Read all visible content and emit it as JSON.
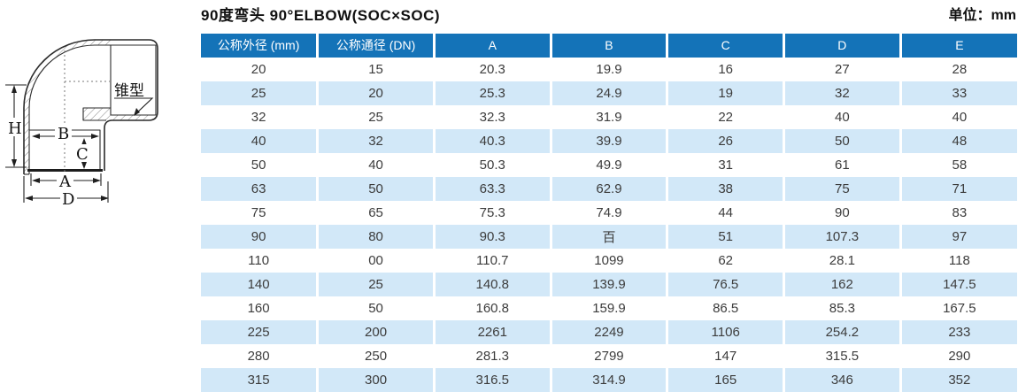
{
  "page": {
    "title": "90度弯头  90°ELBOW(SOC×SOC)",
    "unit_label": "单位：mm"
  },
  "diagram": {
    "cone_label": "锥型",
    "dim_h": "H",
    "dim_b": "B",
    "dim_c": "C",
    "dim_a": "A",
    "dim_d": "D"
  },
  "table": {
    "columns": [
      "公称外径 (mm)",
      "公称通径 (DN)",
      "A",
      "B",
      "C",
      "D",
      "E"
    ],
    "rows": [
      [
        "20",
        "15",
        "20.3",
        "19.9",
        "16",
        "27",
        "28"
      ],
      [
        "25",
        "20",
        "25.3",
        "24.9",
        "19",
        "32",
        "33"
      ],
      [
        "32",
        "25",
        "32.3",
        "31.9",
        "22",
        "40",
        "40"
      ],
      [
        "40",
        "32",
        "40.3",
        "39.9",
        "26",
        "50",
        "48"
      ],
      [
        "50",
        "40",
        "50.3",
        "49.9",
        "31",
        "61",
        "58"
      ],
      [
        "63",
        "50",
        "63.3",
        "62.9",
        "38",
        "75",
        "71"
      ],
      [
        "75",
        "65",
        "75.3",
        "74.9",
        "44",
        "90",
        "83"
      ],
      [
        "90",
        "80",
        "90.3",
        "百",
        "51",
        "107.3",
        "97"
      ],
      [
        "110",
        "00",
        "110.7",
        "1099",
        "62",
        "28.1",
        "118"
      ],
      [
        "140",
        "25",
        "140.8",
        "139.9",
        "76.5",
        "162",
        "147.5"
      ],
      [
        "160",
        "50",
        "160.8",
        "159.9",
        "86.5",
        "85.3",
        "167.5"
      ],
      [
        "225",
        "200",
        "2261",
        "2249",
        "1106",
        "254.2",
        "233"
      ],
      [
        "280",
        "250",
        "281.3",
        "2799",
        "147",
        "315.5",
        "290"
      ],
      [
        "315",
        "300",
        "316.5",
        "314.9",
        "165",
        "346",
        "352"
      ]
    ]
  },
  "colors": {
    "header_bg": "#1473b8",
    "stripe_bg": "#d2e8f8",
    "header_text": "#ffffff",
    "cell_text": "#3c3c3c",
    "title_text": "#111111"
  }
}
